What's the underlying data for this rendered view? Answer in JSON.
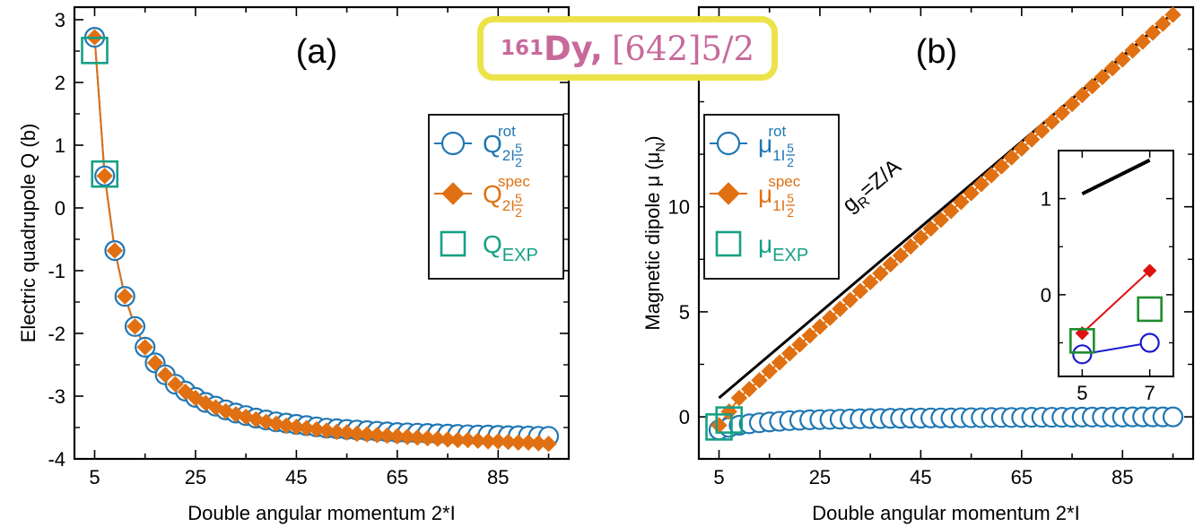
{
  "title_box": {
    "mass_number": "161",
    "element": "Dy,",
    "configuration": "[642]5/2"
  },
  "colors": {
    "rot": "#1f77b4",
    "spec": "#e07012",
    "exp": "#16a085",
    "inset_rot": "#1a1acc",
    "inset_spec": "#e01010",
    "inset_exp": "#1e8c2e",
    "line": "#000000"
  },
  "chart_data": [
    {
      "type": "line",
      "panel_label": "(a)",
      "xlabel": "Double angular momentum 2*I",
      "ylabel": "Electric quadrupole Q (b)",
      "xlim": [
        1,
        99
      ],
      "ylim": [
        -4,
        3.2
      ],
      "x_ticks": [
        5,
        25,
        45,
        65,
        85
      ],
      "y_ticks": [
        -4,
        -3,
        -2,
        -1,
        0,
        1,
        2,
        3
      ],
      "legend_position": "top-right",
      "legend": [
        {
          "base": "Q",
          "sup": "rot",
          "sub": "2I",
          "frac_num": "5",
          "frac_den": "2",
          "style": "rot"
        },
        {
          "base": "Q",
          "sup": "spec",
          "sub": "2I",
          "frac_num": "5",
          "frac_den": "2",
          "style": "spec"
        },
        {
          "base": "Q",
          "sup": "",
          "sub": "EXP",
          "frac_num": "",
          "frac_den": "",
          "style": "exp"
        }
      ],
      "series": [
        {
          "key": "rot",
          "marker": "open-circle",
          "x": [
            5,
            7,
            9,
            11,
            13,
            15,
            17,
            19,
            21,
            23,
            25,
            27,
            29,
            31,
            33,
            35,
            37,
            39,
            41,
            43,
            45,
            47,
            49,
            51,
            53,
            55,
            57,
            59,
            61,
            63,
            65,
            67,
            69,
            71,
            73,
            75,
            77,
            79,
            81,
            83,
            85,
            87,
            89,
            91,
            93,
            95
          ],
          "y": [
            2.72,
            0.51,
            -0.68,
            -1.41,
            -1.89,
            -2.22,
            -2.47,
            -2.66,
            -2.81,
            -2.92,
            -3.02,
            -3.1,
            -3.16,
            -3.22,
            -3.27,
            -3.31,
            -3.35,
            -3.38,
            -3.41,
            -3.43,
            -3.45,
            -3.47,
            -3.49,
            -3.51,
            -3.52,
            -3.53,
            -3.54,
            -3.55,
            -3.56,
            -3.57,
            -3.58,
            -3.585,
            -3.59,
            -3.595,
            -3.6,
            -3.605,
            -3.61,
            -3.615,
            -3.62,
            -3.62,
            -3.625,
            -3.63,
            -3.63,
            -3.635,
            -3.64,
            -3.64
          ]
        },
        {
          "key": "spec",
          "marker": "filled-diamond",
          "x": [
            5,
            7,
            9,
            11,
            13,
            15,
            17,
            19,
            21,
            23,
            25,
            27,
            29,
            31,
            33,
            35,
            37,
            39,
            41,
            43,
            45,
            47,
            49,
            51,
            53,
            55,
            57,
            59,
            61,
            63,
            65,
            67,
            69,
            71,
            73,
            75,
            77,
            79,
            81,
            83,
            85,
            87,
            89,
            91,
            93,
            95
          ],
          "y": [
            2.72,
            0.51,
            -0.68,
            -1.41,
            -1.89,
            -2.22,
            -2.47,
            -2.66,
            -2.81,
            -2.93,
            -3.03,
            -3.11,
            -3.18,
            -3.24,
            -3.29,
            -3.33,
            -3.37,
            -3.41,
            -3.44,
            -3.47,
            -3.49,
            -3.51,
            -3.53,
            -3.55,
            -3.57,
            -3.58,
            -3.6,
            -3.61,
            -3.62,
            -3.63,
            -3.64,
            -3.65,
            -3.66,
            -3.67,
            -3.68,
            -3.69,
            -3.7,
            -3.7,
            -3.71,
            -3.72,
            -3.72,
            -3.73,
            -3.74,
            -3.74,
            -3.75,
            -3.76
          ]
        },
        {
          "key": "exp",
          "marker": "open-square",
          "x": [
            5,
            7
          ],
          "y": [
            2.51,
            0.54
          ]
        }
      ]
    },
    {
      "type": "line",
      "panel_label": "(b)",
      "xlabel": "Double angular momentum 2*I",
      "ylabel": "Magnetic dipole μ (μ",
      "ylabel_sub": "N",
      "ylabel_end": ")",
      "xlim": [
        1,
        99
      ],
      "ylim": [
        -2,
        19.5
      ],
      "x_ticks": [
        5,
        25,
        45,
        65,
        85
      ],
      "y_ticks": [
        0,
        5,
        10
      ],
      "legend_position": "top-left",
      "legend": [
        {
          "base": "μ",
          "sup": "rot",
          "sub": "1I",
          "frac_num": "5",
          "frac_den": "2",
          "style": "rot"
        },
        {
          "base": "μ",
          "sup": "spec",
          "sub": "1I",
          "frac_num": "5",
          "frac_den": "2",
          "style": "spec"
        },
        {
          "base": "μ",
          "sup": "",
          "sub": "EXP",
          "frac_num": "",
          "frac_den": "",
          "style": "exp"
        }
      ],
      "reference_line": {
        "label": "g",
        "label_sub": "R",
        "label_rest": "=Z/A",
        "x": [
          5,
          95
        ],
        "y": [
          0.9,
          19.2
        ]
      },
      "series": [
        {
          "key": "rot",
          "marker": "open-circle",
          "x": [
            5,
            7,
            9,
            11,
            13,
            15,
            17,
            19,
            21,
            23,
            25,
            27,
            29,
            31,
            33,
            35,
            37,
            39,
            41,
            43,
            45,
            47,
            49,
            51,
            53,
            55,
            57,
            59,
            61,
            63,
            65,
            67,
            69,
            71,
            73,
            75,
            77,
            79,
            81,
            83,
            85,
            87,
            89,
            91,
            93,
            95
          ],
          "y": [
            -0.62,
            -0.5,
            -0.4,
            -0.33,
            -0.28,
            -0.24,
            -0.21,
            -0.18,
            -0.16,
            -0.14,
            -0.13,
            -0.12,
            -0.11,
            -0.1,
            -0.09,
            -0.08,
            -0.08,
            -0.07,
            -0.07,
            -0.06,
            -0.06,
            -0.05,
            -0.05,
            -0.05,
            -0.04,
            -0.04,
            -0.04,
            -0.03,
            -0.03,
            -0.03,
            -0.03,
            -0.02,
            -0.02,
            -0.02,
            -0.02,
            -0.02,
            -0.01,
            -0.01,
            -0.01,
            -0.01,
            -0.01,
            0.0,
            0.0,
            0.0,
            0.0,
            0.0
          ]
        },
        {
          "key": "spec",
          "marker": "filled-diamond",
          "x": [
            5,
            7,
            9,
            11,
            13,
            15,
            17,
            19,
            21,
            23,
            25,
            27,
            29,
            31,
            33,
            35,
            37,
            39,
            41,
            43,
            45,
            47,
            49,
            51,
            53,
            55,
            57,
            59,
            61,
            63,
            65,
            67,
            69,
            71,
            73,
            75,
            77,
            79,
            81,
            83,
            85,
            87,
            89,
            91,
            93,
            95
          ],
          "y": [
            -0.4,
            0.25,
            0.9,
            1.32,
            1.74,
            2.17,
            2.59,
            3.02,
            3.44,
            3.87,
            4.29,
            4.71,
            5.14,
            5.56,
            5.99,
            6.41,
            6.83,
            7.26,
            7.68,
            8.11,
            8.53,
            8.96,
            9.38,
            9.8,
            10.23,
            10.65,
            11.08,
            11.5,
            11.92,
            12.35,
            12.77,
            13.2,
            13.62,
            14.05,
            14.47,
            14.89,
            15.32,
            15.74,
            16.17,
            16.59,
            17.01,
            17.44,
            17.86,
            18.29,
            18.71,
            19.14
          ]
        },
        {
          "key": "exp",
          "marker": "open-square",
          "x": [
            5,
            7
          ],
          "y": [
            -0.48,
            -0.15
          ]
        }
      ],
      "inset": {
        "xlim": [
          4.3,
          7.7
        ],
        "ylim": [
          -0.85,
          1.5
        ],
        "x_ticks": [
          5,
          7
        ],
        "y_ticks": [
          0,
          1
        ],
        "reference_line": {
          "x": [
            5,
            7
          ],
          "y": [
            1.05,
            1.4
          ]
        },
        "series": [
          {
            "key": "inset_rot",
            "marker": "open-circle",
            "x": [
              5,
              7
            ],
            "y": [
              -0.62,
              -0.5
            ]
          },
          {
            "key": "inset_spec",
            "marker": "filled-diamond",
            "x": [
              5,
              7
            ],
            "y": [
              -0.4,
              0.25
            ]
          },
          {
            "key": "inset_exp",
            "marker": "open-square",
            "x": [
              5,
              7
            ],
            "y": [
              -0.48,
              -0.15
            ]
          }
        ]
      }
    }
  ]
}
